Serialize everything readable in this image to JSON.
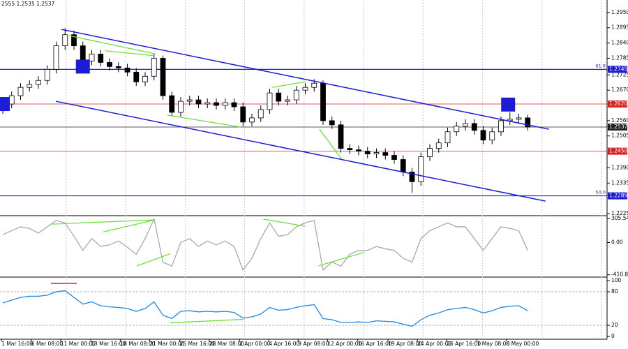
{
  "chart_data": {
    "type": "candlestick",
    "header": "2555 1.2535 1.2537",
    "open": [
      1.26,
      1.262,
      1.265,
      1.268,
      1.269,
      1.2705,
      1.2745,
      1.283,
      1.287,
      1.283,
      1.2775,
      1.28,
      1.277,
      1.2755,
      1.275,
      1.2735,
      1.27,
      1.272,
      1.2785,
      1.265,
      1.259,
      1.263,
      1.2635,
      1.262,
      1.2625,
      1.2615,
      1.2625,
      1.261,
      1.2555,
      1.257,
      1.26,
      1.266,
      1.263,
      1.2635,
      1.267,
      1.268,
      1.2695,
      1.256,
      1.2545,
      1.246,
      1.2455,
      1.245,
      1.244,
      1.2445,
      1.2435,
      1.242,
      1.2375,
      1.234,
      1.243,
      1.246,
      1.248,
      1.252,
      1.254,
      1.255,
      1.2525,
      1.249,
      1.252,
      1.256,
      1.2565,
      1.257
    ],
    "high": [
      1.2635,
      1.2665,
      1.2695,
      1.2705,
      1.272,
      1.276,
      1.2845,
      1.2893,
      1.2885,
      1.2845,
      1.2815,
      1.2815,
      1.2785,
      1.277,
      1.2765,
      1.275,
      1.2735,
      1.28,
      1.2795,
      1.2665,
      1.2645,
      1.265,
      1.265,
      1.264,
      1.264,
      1.264,
      1.264,
      1.2625,
      1.2585,
      1.2615,
      1.2675,
      1.2675,
      1.265,
      1.2685,
      1.2695,
      1.271,
      1.2705,
      1.2575,
      1.256,
      1.2475,
      1.247,
      1.2465,
      1.246,
      1.246,
      1.245,
      1.2435,
      1.239,
      1.2445,
      1.2475,
      1.2495,
      1.2535,
      1.2555,
      1.2565,
      1.2565,
      1.254,
      1.2535,
      1.2575,
      1.259,
      1.2585,
      1.258
    ],
    "low": [
      1.2585,
      1.2605,
      1.2635,
      1.2665,
      1.2675,
      1.269,
      1.273,
      1.2815,
      1.2815,
      1.276,
      1.276,
      1.2755,
      1.274,
      1.2735,
      1.272,
      1.2685,
      1.2685,
      1.2705,
      1.2635,
      1.2575,
      1.2575,
      1.2615,
      1.2605,
      1.2605,
      1.26,
      1.26,
      1.2595,
      1.254,
      1.254,
      1.2555,
      1.2585,
      1.2615,
      1.2615,
      1.262,
      1.2655,
      1.2665,
      1.2545,
      1.253,
      1.2445,
      1.244,
      1.2435,
      1.2425,
      1.2425,
      1.242,
      1.2405,
      1.236,
      1.23,
      1.2325,
      1.2415,
      1.2445,
      1.2465,
      1.2505,
      1.2525,
      1.251,
      1.2475,
      1.2475,
      1.2505,
      1.2545,
      1.255,
      1.2525
    ],
    "close": [
      1.262,
      1.265,
      1.268,
      1.269,
      1.2705,
      1.2745,
      1.283,
      1.287,
      1.283,
      1.2775,
      1.28,
      1.277,
      1.2755,
      1.275,
      1.2735,
      1.27,
      1.272,
      1.2785,
      1.265,
      1.259,
      1.263,
      1.2635,
      1.262,
      1.2625,
      1.2615,
      1.2625,
      1.261,
      1.2555,
      1.257,
      1.26,
      1.266,
      1.263,
      1.2635,
      1.267,
      1.268,
      1.2695,
      1.256,
      1.2545,
      1.246,
      1.2455,
      1.245,
      1.244,
      1.2445,
      1.2435,
      1.242,
      1.2375,
      1.234,
      1.243,
      1.246,
      1.248,
      1.252,
      1.254,
      1.255,
      1.2525,
      1.249,
      1.252,
      1.256,
      1.2565,
      1.257,
      1.2537
    ],
    "ylim": [
      1.222,
      1.2995
    ],
    "yticks": [
      {
        "value": 1.295,
        "label": "1.2950"
      },
      {
        "value": 1.2895,
        "label": "1.2895"
      },
      {
        "value": 1.284,
        "label": "1.2840"
      },
      {
        "value": 1.2785,
        "label": "1.2785"
      },
      {
        "value": 1.2725,
        "label": "1.2725"
      },
      {
        "value": 1.267,
        "label": "1.2670"
      },
      {
        "value": 1.256,
        "label": "1.2560"
      },
      {
        "value": 1.2505,
        "label": "1.2505"
      },
      {
        "value": 1.239,
        "label": "1.2390"
      },
      {
        "value": 1.2335,
        "label": "1.2335"
      },
      {
        "value": 1.2225,
        "label": "1.2225"
      }
    ],
    "levels": [
      {
        "value": 1.2745,
        "label": "1.2745",
        "color": "#1c1cd6",
        "fib": "61.8"
      },
      {
        "value": 1.262,
        "label": "1.2620",
        "color": "#d82020"
      },
      {
        "value": 1.2537,
        "label": "1.2537",
        "color": "#202020"
      },
      {
        "value": 1.245,
        "label": "1.2450",
        "color": "#d82020"
      },
      {
        "value": 1.2289,
        "label": "1.2289",
        "color": "#1c1cd6",
        "fib": "50.0"
      }
    ],
    "xticks": [
      {
        "value": -0.15,
        "label": "1 Mar 16:00"
      },
      {
        "value": 3.2,
        "label": "6 Mar 08:00"
      },
      {
        "value": 6.5,
        "label": "11 Mar 00:00"
      },
      {
        "value": 9.9,
        "label": "13 Mar 16:00"
      },
      {
        "value": 13.2,
        "label": "18 Mar 08:00"
      },
      {
        "value": 16.5,
        "label": "21 Mar 00:00"
      },
      {
        "value": 19.9,
        "label": "25 Mar 16:00"
      },
      {
        "value": 23.2,
        "label": "28 Mar 08:00"
      },
      {
        "value": 26.6,
        "label": "2 Apr 00:00"
      },
      {
        "value": 29.9,
        "label": "4 Apr 16:00"
      },
      {
        "value": 33.2,
        "label": "9 Apr 08:00"
      },
      {
        "value": 36.5,
        "label": "12 Apr 00:00"
      },
      {
        "value": 39.9,
        "label": "16 Apr 16:00"
      },
      {
        "value": 43.3,
        "label": "19 Apr 08:00"
      },
      {
        "value": 46.6,
        "label": "24 Apr 00:00"
      },
      {
        "value": 49.9,
        "label": "26 Apr 16:00"
      },
      {
        "value": 53.3,
        "label": "1 May 08:00"
      },
      {
        "value": 56.6,
        "label": "6 May 00:00"
      }
    ],
    "channel_color": "#1c1cd6",
    "channel": [
      [
        [
          6.6,
          1.2889
        ],
        [
          61.4,
          1.2529
        ]
      ],
      [
        [
          5.96,
          1.263
        ],
        [
          61.0,
          1.227
        ]
      ]
    ],
    "divergence_color": "#6ee03a",
    "divergences": [
      [
        [
          7.1,
          1.2869
        ],
        [
          17.1,
          1.2801
        ]
      ],
      [
        [
          11.5,
          1.2812
        ],
        [
          17.1,
          1.2794
        ]
      ],
      [
        [
          18.5,
          1.258
        ],
        [
          26.7,
          1.2537
        ]
      ],
      [
        [
          30.3,
          1.268
        ],
        [
          34.0,
          1.27
        ]
      ],
      [
        [
          35.6,
          1.2529
        ],
        [
          38.1,
          1.2421
        ]
      ]
    ],
    "marker_color": "#1c1cd6",
    "markers": [
      [
        0,
        1.262
      ],
      [
        9,
        1.2755
      ],
      [
        56.8,
        1.2618
      ]
    ],
    "cci": {
      "color": "#a8a8a8",
      "values": [
        100,
        150,
        200,
        180,
        120,
        200,
        280,
        250,
        80,
        -100,
        50,
        -50,
        -30,
        20,
        -60,
        -150,
        50,
        300,
        -250,
        -300,
        0,
        50,
        -50,
        20,
        -30,
        20,
        -50,
        -350,
        -200,
        50,
        250,
        80,
        100,
        200,
        250,
        280,
        -350,
        -250,
        -300,
        -150,
        -100,
        -100,
        -50,
        -80,
        -100,
        -200,
        -250,
        50,
        150,
        200,
        250,
        200,
        200,
        50,
        -100,
        50,
        200,
        180,
        150,
        -100
      ],
      "ylim": [
        -431.5,
        332.6
      ],
      "yticks": [
        305.5401,
        {
          "value": 0,
          "label": "0.00"
        },
        -410.803
      ],
      "divergences": [
        [
          [
            5.57,
            234
          ],
          [
            17.1,
            288
          ]
        ],
        [
          [
            11.3,
            135
          ],
          [
            17.1,
            288
          ]
        ],
        [
          [
            15.1,
            -297
          ],
          [
            18.8,
            -144
          ]
        ],
        [
          [
            29.3,
            297
          ],
          [
            34.0,
            207
          ]
        ],
        [
          [
            35.5,
            -297
          ],
          [
            40.6,
            -126
          ]
        ]
      ]
    },
    "rsi": {
      "color": "#1e88e5",
      "values": [
        60,
        65,
        70,
        72,
        72,
        74,
        80,
        82,
        70,
        58,
        62,
        55,
        53,
        52,
        50,
        45,
        50,
        62,
        38,
        32,
        45,
        46,
        44,
        45,
        44,
        45,
        43,
        33,
        35,
        40,
        52,
        47,
        48,
        52,
        55,
        57,
        32,
        30,
        25,
        25,
        26,
        25,
        28,
        27,
        26,
        22,
        18,
        30,
        38,
        42,
        48,
        50,
        52,
        48,
        42,
        46,
        52,
        54,
        55,
        46
      ],
      "ylim": [
        -3.8,
        105.1
      ],
      "yticks": [
        100,
        80,
        20,
        0
      ],
      "divergences": [
        [
          [
            18.8,
            24.3
          ],
          [
            27.1,
            30.7
          ]
        ]
      ]
    }
  }
}
